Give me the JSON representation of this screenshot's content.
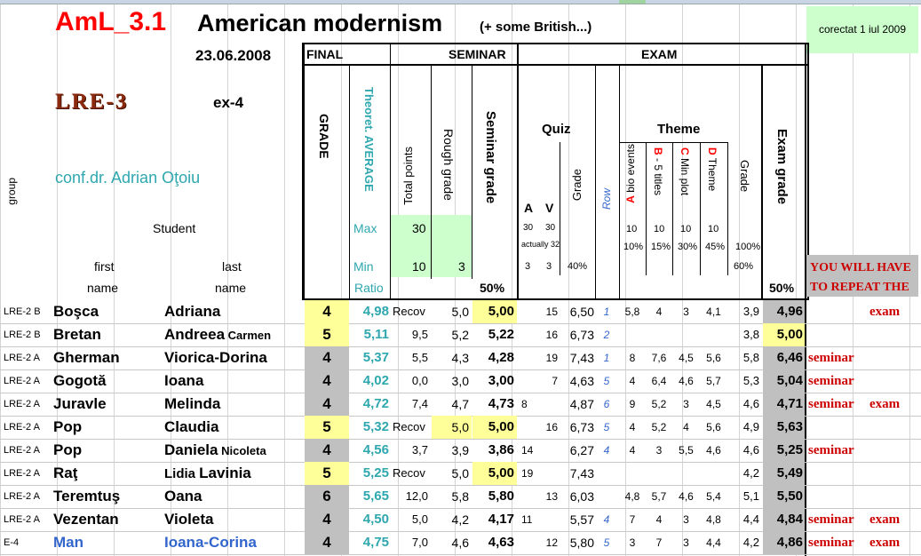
{
  "header": {
    "title_code": "AmL_3.1",
    "title_main": "American modernism",
    "title_note": "(+ some British...)",
    "corrected": "corectat 1 iul 2009",
    "date": "23.06.2008",
    "course_logo": "LRE-3",
    "exam_label": "ex-4",
    "teacher": "conf.dr. Adrian Oţoiu"
  },
  "columns": {
    "group": "group",
    "student": "Student",
    "first": "first",
    "last": "last",
    "name1": "name",
    "name2": "name",
    "final": "FINAL",
    "grade": "GRADE",
    "theoret_avg": "Theoret. AVERAGE",
    "max": "Max",
    "min": "Min",
    "ratio": "Ratio",
    "seminar": "SEMINAR",
    "total_points": "Total points",
    "rough_grade": "Rough grade",
    "seminar_grade": "Seminar grade",
    "sem_max": "30",
    "sem_min": "10",
    "rough_min": "3",
    "sem_ratio": "50%",
    "exam": "EXAM",
    "quiz": "Quiz",
    "quiz_a": "A",
    "quiz_v": "V",
    "quiz_grade": "Grade",
    "qa_max": "30",
    "qv_max": "30",
    "actually": "actually 32",
    "qa_min": "3",
    "qv_min": "3",
    "quiz_ratio": "40%",
    "row": "Row",
    "theme": "Theme",
    "theme_a_letter": "A",
    "theme_a": " bio events",
    "theme_b_letter": "B",
    "theme_b": " - 5 titles",
    "theme_c_letter": "C",
    "theme_c": " Min plot",
    "theme_d_letter": "D",
    "theme_d": " Theme",
    "theme_grade": "Grade",
    "ta_max": "10",
    "tb_max": "10",
    "tc_max": "10",
    "td_max": "10",
    "tg_max": "100%",
    "ta_pct": "10%",
    "tb_pct": "15%",
    "tc_pct": "30%",
    "td_pct": "45%",
    "tg_min": "60%",
    "exam_grade": "Exam grade",
    "exam_ratio": "50%",
    "repeat": "YOU WILL HAVE TO REPEAT THE"
  },
  "rows": [
    {
      "group": "LRE-2  B",
      "first": "Boşca",
      "last": "Adriana",
      "last_small": "",
      "grade": "4",
      "avg": "4,98",
      "total": "Recov",
      "rough": "5,0",
      "sem": "5,00",
      "qa": "",
      "qtot": "15",
      "qgrade": "6,50",
      "row": "1",
      "ta": "5,8",
      "tb": "4",
      "tc": "3",
      "td": "4,1",
      "tg": "3,9",
      "exam": "4,96",
      "rep1": "",
      "rep2": "exam",
      "grade_bg": "#ffff99",
      "sem_bg": "#ffff99",
      "exam_bg": "#c0c0c0",
      "rough_bg": ""
    },
    {
      "group": "LRE-2  B",
      "first": "Bretan",
      "last": "Andreea",
      "last_small": "Carmen",
      "grade": "5",
      "avg": "5,11",
      "total": "9,5",
      "rough": "5,2",
      "sem": "5,22",
      "qa": "",
      "qtot": "16",
      "qgrade": "6,73",
      "row": "2",
      "ta": "",
      "tb": "",
      "tc": "",
      "td": "",
      "tg": "3,8",
      "exam": "5,00",
      "rep1": "",
      "rep2": "",
      "grade_bg": "#ffff99",
      "sem_bg": "",
      "exam_bg": "#ffff99",
      "rough_bg": ""
    },
    {
      "group": "LRE-2  A",
      "first": "Gherman",
      "last": "Viorica-Dorina",
      "last_small": "",
      "grade": "4",
      "avg": "5,37",
      "total": "5,5",
      "rough": "4,3",
      "sem": "4,28",
      "qa": "",
      "qtot": "19",
      "qgrade": "7,43",
      "row": "1",
      "ta": "8",
      "tb": "7,6",
      "tc": "4,5",
      "td": "5,6",
      "tg": "5,8",
      "exam": "6,46",
      "rep1": "seminar",
      "rep2": "",
      "grade_bg": "#c0c0c0",
      "sem_bg": "",
      "exam_bg": "#c0c0c0",
      "rough_bg": ""
    },
    {
      "group": "LRE-2  A",
      "first": "Gogotă",
      "last": "Ioana",
      "last_small": "",
      "grade": "4",
      "avg": "4,02",
      "total": "0,0",
      "rough": "3,0",
      "sem": "3,00",
      "qa": "",
      "qtot": "7",
      "qgrade": "4,63",
      "row": "5",
      "ta": "4",
      "tb": "6,4",
      "tc": "4,6",
      "td": "5,7",
      "tg": "5,3",
      "exam": "5,04",
      "rep1": "seminar",
      "rep2": "",
      "grade_bg": "#c0c0c0",
      "sem_bg": "",
      "exam_bg": "#c0c0c0",
      "rough_bg": ""
    },
    {
      "group": "LRE-2  A",
      "first": "Juravle",
      "last": "Melinda",
      "last_small": "",
      "grade": "4",
      "avg": "4,72",
      "total": "7,4",
      "rough": "4,7",
      "sem": "4,73",
      "qa": "8",
      "qtot": "",
      "qgrade": "4,87",
      "row": "6",
      "ta": "9",
      "tb": "5,2",
      "tc": "3",
      "td": "4,5",
      "tg": "4,6",
      "exam": "4,71",
      "rep1": "seminar",
      "rep2": "exam",
      "grade_bg": "#c0c0c0",
      "sem_bg": "",
      "exam_bg": "#c0c0c0",
      "rough_bg": ""
    },
    {
      "group": "LRE-2  A",
      "first": "Pop",
      "last": "Claudia",
      "last_small": "",
      "grade": "5",
      "avg": "5,32",
      "total": "Recov",
      "rough": "5,0",
      "sem": "5,00",
      "qa": "",
      "qtot": "16",
      "qgrade": "6,73",
      "row": "5",
      "ta": "4",
      "tb": "5,2",
      "tc": "4",
      "td": "5,6",
      "tg": "4,9",
      "exam": "5,63",
      "rep1": "",
      "rep2": "",
      "grade_bg": "#ffff99",
      "sem_bg": "#ffff99",
      "exam_bg": "#c0c0c0",
      "rough_bg": "#ffff99"
    },
    {
      "group": "LRE-2  A",
      "first": "Pop",
      "last": "Daniela",
      "last_small": "Nicoleta",
      "grade": "4",
      "avg": "4,56",
      "total": "3,7",
      "rough": "3,9",
      "sem": "3,86",
      "qa": "14",
      "qtot": "",
      "qgrade": "6,27",
      "row": "4",
      "ta": "4",
      "tb": "3",
      "tc": "5,5",
      "td": "4,6",
      "tg": "4,6",
      "exam": "5,25",
      "rep1": "seminar",
      "rep2": "",
      "grade_bg": "#c0c0c0",
      "sem_bg": "",
      "exam_bg": "#c0c0c0",
      "rough_bg": ""
    },
    {
      "group": "LRE-2  A",
      "first": "Raţ",
      "last": "Lavinia",
      "last_prefix": "Lidia",
      "last_small": "",
      "grade": "5",
      "avg": "5,25",
      "total": "Recov",
      "rough": "5,0",
      "sem": "5,00",
      "qa": "19",
      "qtot": "",
      "qgrade": "7,43",
      "row": "",
      "ta": "",
      "tb": "",
      "tc": "",
      "td": "",
      "tg": "4,2",
      "exam": "5,49",
      "rep1": "",
      "rep2": "",
      "grade_bg": "#ffff99",
      "sem_bg": "#ffff99",
      "exam_bg": "#c0c0c0",
      "rough_bg": ""
    },
    {
      "group": "LRE-2  A",
      "first": "Teremtuş",
      "last": "Oana",
      "last_small": "",
      "grade": "6",
      "avg": "5,65",
      "total": "12,0",
      "rough": "5,8",
      "sem": "5,80",
      "qa": "",
      "qtot": "13",
      "qgrade": "6,03",
      "row": "",
      "ta": "4,8",
      "tb": "5,7",
      "tc": "4,6",
      "td": "5,4",
      "tg": "5,1",
      "exam": "5,50",
      "rep1": "",
      "rep2": "",
      "grade_bg": "#c0c0c0",
      "sem_bg": "",
      "exam_bg": "#c0c0c0",
      "rough_bg": ""
    },
    {
      "group": "LRE-2  A",
      "first": "Vezentan",
      "last": "Violeta",
      "last_small": "",
      "grade": "4",
      "avg": "4,50",
      "total": "5,0",
      "rough": "4,2",
      "sem": "4,17",
      "qa": "11",
      "qtot": "",
      "qgrade": "5,57",
      "row": "4",
      "ta": "7",
      "tb": "4",
      "tc": "3",
      "td": "4,8",
      "tg": "4,4",
      "exam": "4,84",
      "rep1": "seminar",
      "rep2": "exam",
      "grade_bg": "#c0c0c0",
      "sem_bg": "",
      "exam_bg": "#c0c0c0",
      "rough_bg": ""
    },
    {
      "group": "E-4",
      "first": "Man",
      "last": "Ioana-Corina",
      "last_small": "",
      "grade": "4",
      "avg": "4,75",
      "total": "7,0",
      "rough": "4,6",
      "sem": "4,63",
      "qa": "",
      "qtot": "12",
      "qgrade": "5,80",
      "row": "5",
      "ta": "3",
      "tb": "7",
      "tc": "3",
      "td": "4,4",
      "tg": "4,2",
      "exam": "4,86",
      "rep1": "seminar",
      "rep2": "exam",
      "grade_bg": "#c0c0c0",
      "sem_bg": "",
      "exam_bg": "#c0c0c0",
      "rough_bg": "",
      "blue": true
    }
  ],
  "colors": {
    "title_red": "#ff0000",
    "teal": "#2ea7ae",
    "row_blue": "#3366cc",
    "repeat_red": "#cc0000",
    "pass_yellow": "#ffff99",
    "fail_gray": "#c0c0c0",
    "hint_green": "#ccffcc"
  }
}
